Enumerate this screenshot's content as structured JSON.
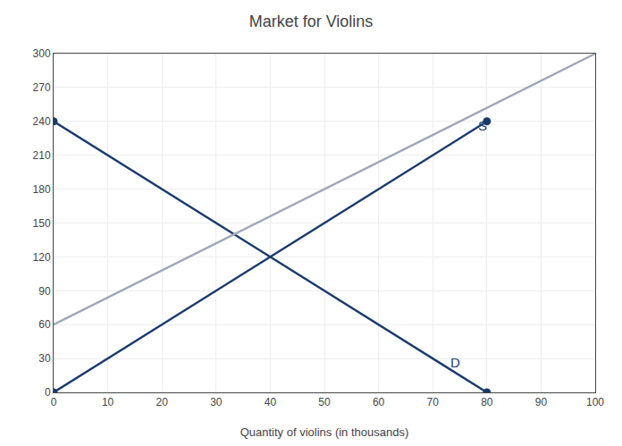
{
  "chart_data": {
    "type": "line",
    "title": "Market for Violins",
    "xlabel": "Quantity of violins (in thousands)",
    "xlim": [
      0,
      100
    ],
    "ylim": [
      0,
      300
    ],
    "xticks": [
      0,
      10,
      20,
      30,
      40,
      50,
      60,
      70,
      80,
      90,
      100
    ],
    "yticks": [
      0,
      30,
      60,
      90,
      120,
      150,
      180,
      210,
      240,
      270,
      300
    ],
    "grid": true,
    "series": [
      {
        "x": [
          0,
          80
        ],
        "values": [
          240,
          0
        ],
        "color": "#1a3a6b",
        "marker": "circle"
      },
      {
        "x": [
          0,
          80
        ],
        "values": [
          0,
          240
        ],
        "color": "#1a3a6b",
        "marker": "circle"
      },
      {
        "x": [
          0,
          100
        ],
        "values": [
          60,
          300
        ],
        "color": "#a0a8b8"
      }
    ],
    "annotations": [
      {
        "text": "S",
        "x": 78,
        "y": 228,
        "color": "#1a3a6b"
      },
      {
        "text": "D",
        "x": 73,
        "y": 18,
        "color": "#1a3a6b"
      }
    ]
  }
}
